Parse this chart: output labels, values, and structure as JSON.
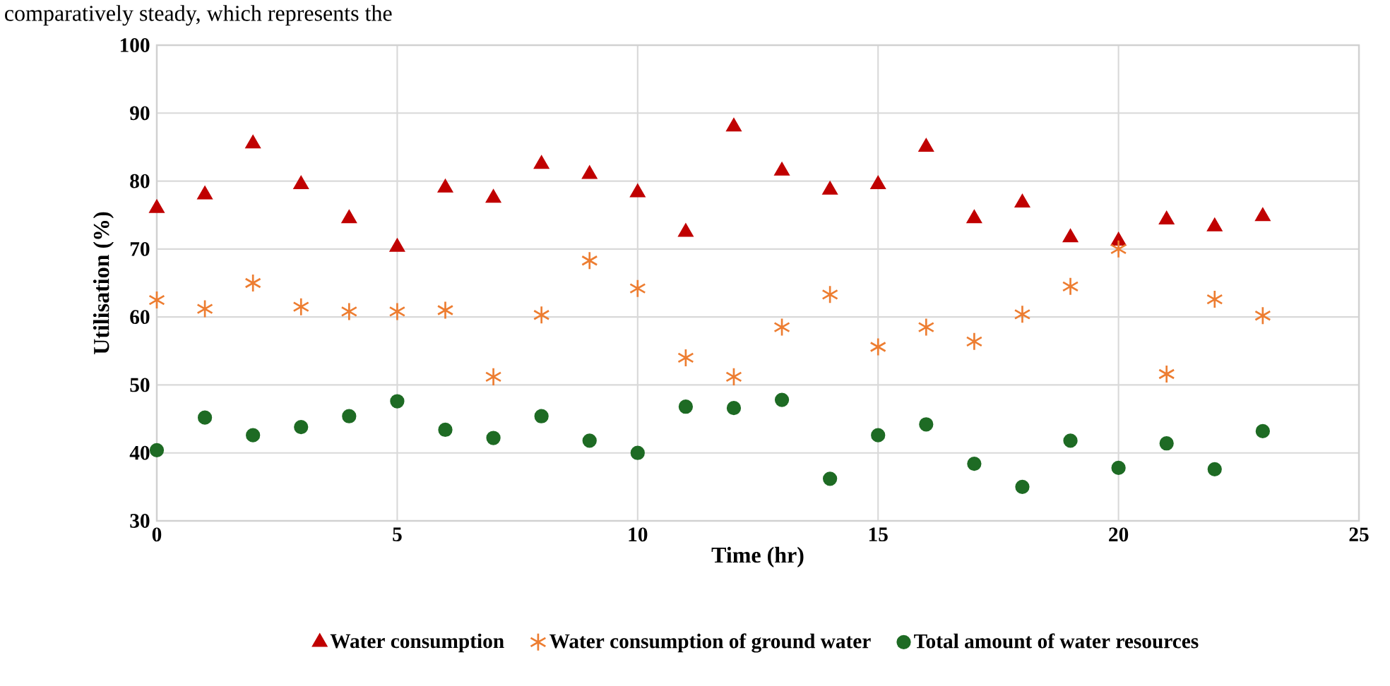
{
  "chart_data": {
    "type": "scatter",
    "xlabel": "Time (hr)",
    "ylabel": "Utilisation (%)",
    "annotations": [
      "comparatively steady, which represents the"
    ],
    "x": [
      0,
      1,
      2,
      3,
      4,
      5,
      6,
      7,
      8,
      9,
      10,
      11,
      12,
      13,
      14,
      15,
      16,
      17,
      18,
      19,
      20,
      21,
      22,
      23
    ],
    "series": [
      {
        "name": "Water consumption",
        "color": "#c00000",
        "marker": "triangle",
        "values": [
          76,
          78,
          85.5,
          79.5,
          74.5,
          70.3,
          79,
          77.5,
          82.5,
          81,
          78.3,
          72.5,
          88,
          81.5,
          78.7,
          79.5,
          85,
          74.5,
          76.8,
          71.7,
          71.2,
          74.3,
          73.3,
          74.8
        ]
      },
      {
        "name": "Water consumption of ground water",
        "color": "#ed7d31",
        "marker": "cross",
        "values": [
          62.5,
          61.2,
          65,
          61.5,
          60.8,
          60.8,
          61,
          51.2,
          60.3,
          68.3,
          64.2,
          54,
          51.2,
          58.5,
          63.3,
          55.6,
          58.5,
          56.4,
          60.4,
          64.5,
          70,
          51.6,
          62.6,
          60.2
        ]
      },
      {
        "name": "Total amount of water resources",
        "color": "#1e6b24",
        "marker": "circle",
        "values": [
          40.4,
          45.2,
          42.6,
          43.8,
          45.4,
          47.6,
          43.4,
          42.2,
          45.4,
          41.8,
          40,
          46.8,
          46.6,
          47.8,
          36.2,
          42.6,
          44.2,
          38.4,
          35,
          41.8,
          37.8,
          41.4,
          37.6,
          43.2
        ]
      }
    ],
    "xlim": [
      0,
      25
    ],
    "xticks": [
      0,
      5,
      10,
      15,
      20,
      25
    ],
    "ylim": [
      30,
      100
    ],
    "yticks": [
      30,
      40,
      50,
      60,
      70,
      80,
      90,
      100
    ],
    "grid": true,
    "legend": "bottom"
  }
}
